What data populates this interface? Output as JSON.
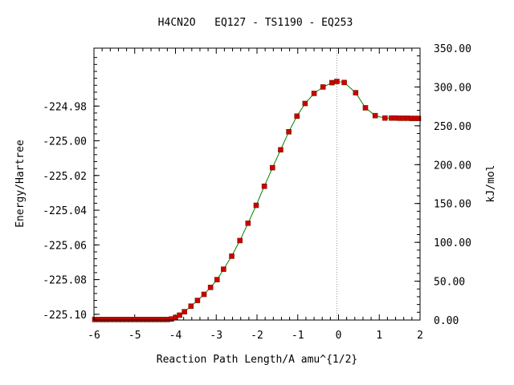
{
  "chart_data": {
    "type": "line",
    "title": "H4CN2O   EQ127 - TS1190 - EQ253",
    "xlabel": "Reaction Path Length/A amu^{1/2}",
    "ylabel": "Energy/Hartree",
    "y2label": "kJ/mol",
    "xlim": [
      -6,
      2
    ],
    "ylim": [
      -225.1033,
      -224.9466
    ],
    "y2lim": [
      0,
      350
    ],
    "xticks": [
      "-6",
      "-5",
      "-4",
      "-3",
      "-2",
      "-1",
      "0",
      "1",
      "2"
    ],
    "xtick_values": [
      -6,
      -5,
      -4,
      -3,
      -2,
      -1,
      0,
      1,
      2
    ],
    "yticks": [
      "-224.98",
      "-225.00",
      "-225.02",
      "-225.04",
      "-225.06",
      "-225.08",
      "-225.10"
    ],
    "ytick_values": [
      -224.98,
      -225.0,
      -225.02,
      -225.04,
      -225.06,
      -225.08,
      -225.1
    ],
    "y2ticks": [
      "350.00",
      "300.00",
      "250.00",
      "200.00",
      "150.00",
      "100.00",
      "50.00",
      "0.00"
    ],
    "y2tick_values": [
      350,
      300,
      250,
      200,
      150,
      100,
      50,
      0
    ],
    "ts_x": -0.04,
    "series": [
      {
        "color": "#008000",
        "marker_color": "#cc0000",
        "x": [
          -5.98,
          -5.88,
          -5.78,
          -5.7,
          -5.6,
          -5.5,
          -5.4,
          -5.3,
          -5.2,
          -5.1,
          -5.0,
          -4.9,
          -4.8,
          -4.7,
          -4.6,
          -4.5,
          -4.4,
          -4.3,
          -4.2,
          -4.1,
          -4.0,
          -3.9,
          -3.78,
          -3.62,
          -3.46,
          -3.3,
          -3.14,
          -2.98,
          -2.82,
          -2.62,
          -2.42,
          -2.22,
          -2.02,
          -1.82,
          -1.62,
          -1.42,
          -1.22,
          -1.02,
          -0.82,
          -0.6,
          -0.38,
          -0.16,
          -0.04,
          0.14,
          0.42,
          0.66,
          0.9,
          1.14,
          1.3,
          1.4,
          1.5,
          1.6,
          1.7,
          1.8,
          1.88,
          1.96
        ],
        "y": [
          -225.103,
          -225.103,
          -225.103,
          -225.103,
          -225.103,
          -225.103,
          -225.103,
          -225.103,
          -225.103,
          -225.103,
          -225.103,
          -225.103,
          -225.103,
          -225.103,
          -225.103,
          -225.103,
          -225.103,
          -225.103,
          -225.103,
          -225.1027,
          -225.1018,
          -225.1005,
          -225.0985,
          -225.0953,
          -225.092,
          -225.0885,
          -225.0845,
          -225.08,
          -225.074,
          -225.0665,
          -225.0575,
          -225.0475,
          -225.0372,
          -225.0262,
          -225.0155,
          -225.0052,
          -224.9948,
          -224.9858,
          -224.9785,
          -224.9727,
          -224.969,
          -224.9665,
          -224.9658,
          -224.9664,
          -224.9723,
          -224.981,
          -224.9855,
          -224.9869,
          -224.9869,
          -224.9869,
          -224.987,
          -224.987,
          -224.987,
          -224.9871,
          -224.9871,
          -224.9871
        ]
      }
    ]
  }
}
